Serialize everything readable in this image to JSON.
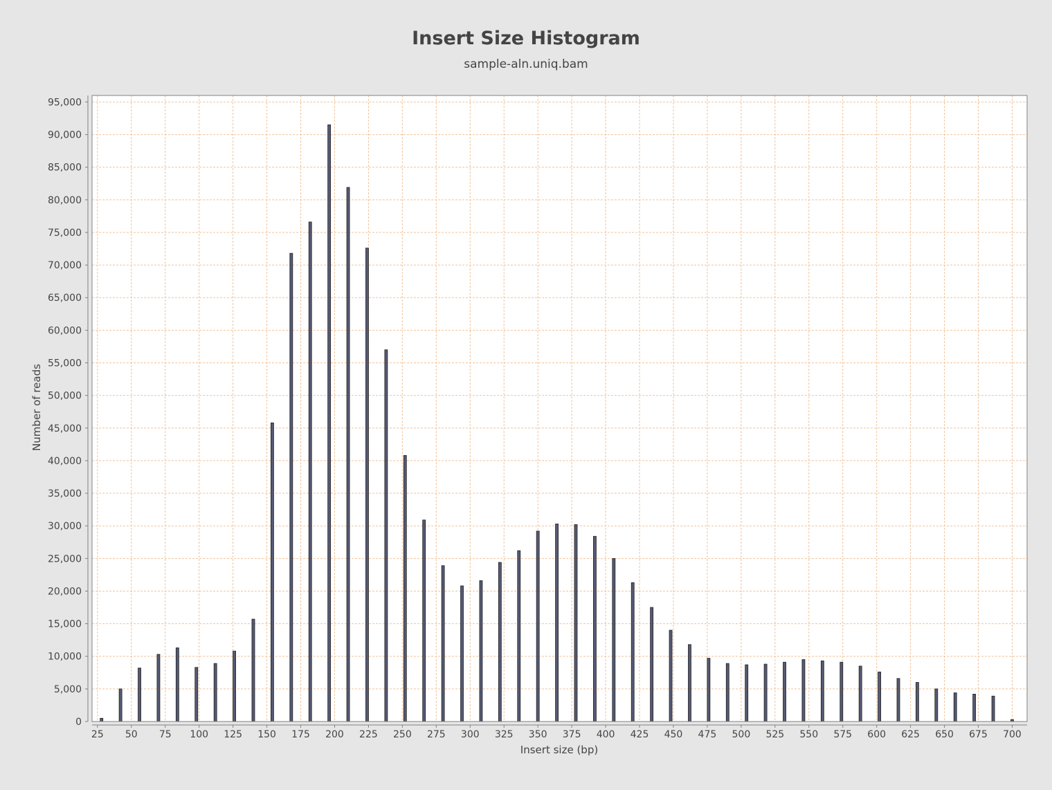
{
  "chart_data": {
    "type": "bar",
    "title": "Insert Size Histogram",
    "subtitle": "sample-aln.uniq.bam",
    "xlabel": "Insert size (bp)",
    "ylabel": "Number of reads",
    "xlim": [
      21,
      711
    ],
    "ylim": [
      0,
      96000
    ],
    "xticks": [
      25,
      50,
      75,
      100,
      125,
      150,
      175,
      200,
      225,
      250,
      275,
      300,
      325,
      350,
      375,
      400,
      425,
      450,
      475,
      500,
      525,
      550,
      575,
      600,
      625,
      650,
      675,
      700
    ],
    "yticks": [
      0,
      5000,
      10000,
      15000,
      20000,
      25000,
      30000,
      35000,
      40000,
      45000,
      50000,
      55000,
      60000,
      65000,
      70000,
      75000,
      80000,
      85000,
      90000,
      95000
    ],
    "grid": true,
    "colors": {
      "background": "#e6e6e6",
      "plot_bg": "#ffffff",
      "grid": "#f2c29a",
      "bar": "#565a73",
      "bar_edge": "#222222"
    },
    "x": [
      28,
      42,
      56,
      70,
      84,
      98,
      112,
      126,
      140,
      154,
      168,
      182,
      196,
      210,
      224,
      238,
      252,
      266,
      280,
      294,
      308,
      322,
      336,
      350,
      364,
      378,
      392,
      406,
      420,
      434,
      448,
      462,
      476,
      490,
      504,
      518,
      532,
      546,
      560,
      574,
      588,
      602,
      616,
      630,
      644,
      658,
      672,
      686,
      700
    ],
    "values": [
      500,
      5000,
      8200,
      10300,
      11300,
      8300,
      8900,
      10800,
      15700,
      45800,
      71800,
      76600,
      91500,
      81900,
      72600,
      57000,
      40800,
      30900,
      23900,
      20800,
      21600,
      24400,
      26200,
      29200,
      30300,
      30200,
      28400,
      25000,
      21300,
      17500,
      14000,
      11800,
      9700,
      8900,
      8700,
      8800,
      9100,
      9500,
      9300,
      9100,
      8500,
      7600,
      6600,
      6000,
      5000,
      4400,
      4200,
      3900,
      300
    ]
  }
}
